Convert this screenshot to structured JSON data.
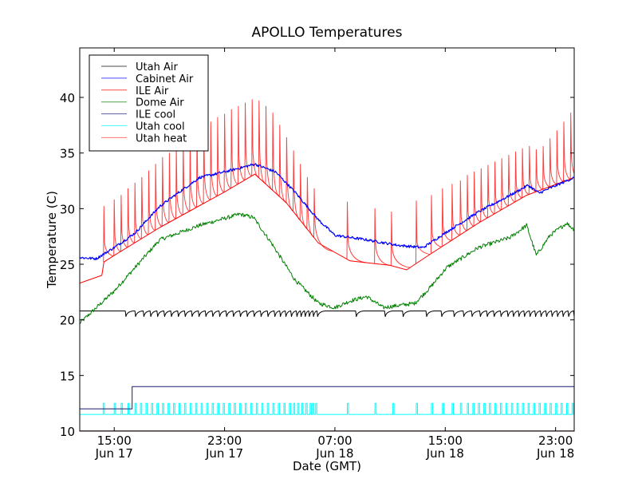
{
  "chart_data": {
    "type": "line",
    "title": "APOLLO Temperatures",
    "xlabel": "Date (GMT)",
    "ylabel": "Temperature (C)",
    "x_unit": "hours since 12:30 Jun 17 (GMT)",
    "xlim": [
      0,
      35.85
    ],
    "ylim": [
      10,
      44.45
    ],
    "grid": false,
    "legend_position": "top-left",
    "yticks": [
      10,
      15,
      20,
      25,
      30,
      35,
      40
    ],
    "ytick_labels": [
      "10",
      "15",
      "20",
      "25",
      "30",
      "35",
      "40"
    ],
    "xticks": [
      2.5,
      10.5,
      18.5,
      26.5,
      34.5
    ],
    "xtick_labels": [
      [
        "15:00",
        "Jun 17"
      ],
      [
        "23:00",
        "Jun 17"
      ],
      [
        "07:00",
        "Jun 18"
      ],
      [
        "15:00",
        "Jun 18"
      ],
      [
        "23:00",
        "Jun 18"
      ]
    ],
    "series": [
      {
        "name": "Utah Air",
        "color": "#000000",
        "style": "sawtooth",
        "base": [
          [
            0,
            20.8
          ],
          [
            35.85,
            20.8
          ]
        ],
        "dip": 0.5,
        "pulse_hours": [
          3.3,
          4.0,
          4.6,
          5.1,
          5.6,
          6.1,
          6.6,
          7.1,
          7.6,
          8.1,
          8.6,
          9.1,
          9.6,
          10.1,
          10.6,
          11.1,
          11.6,
          12.1,
          12.6,
          13.1,
          13.6,
          14.1,
          14.5,
          14.9,
          15.3,
          15.7,
          16.0,
          16.3,
          16.6,
          16.9,
          17.2,
          20.0,
          22.1,
          23.4,
          25.1,
          26.2,
          27.1,
          27.8,
          28.4,
          29.0,
          29.5,
          30.0,
          30.5,
          31.0,
          31.4,
          31.8,
          32.2,
          32.6,
          33.0,
          33.4,
          33.8,
          34.2,
          34.6,
          35.0,
          35.4,
          35.8
        ]
      },
      {
        "name": "Cabinet Air",
        "color": "#0000ff",
        "style": "noisy",
        "points": [
          [
            0,
            25.6
          ],
          [
            1.2,
            25.5
          ],
          [
            2.5,
            26.5
          ],
          [
            4.0,
            27.8
          ],
          [
            5.8,
            30.2
          ],
          [
            7.0,
            31.3
          ],
          [
            8.7,
            32.8
          ],
          [
            10.5,
            33.3
          ],
          [
            12.7,
            34.0
          ],
          [
            14.2,
            33.3
          ],
          [
            15.6,
            31.5
          ],
          [
            17.3,
            29.0
          ],
          [
            18.5,
            27.6
          ],
          [
            20.8,
            27.2
          ],
          [
            23.1,
            26.7
          ],
          [
            24.9,
            26.5
          ],
          [
            26.6,
            27.9
          ],
          [
            28.9,
            29.7
          ],
          [
            31.2,
            31.2
          ],
          [
            32.5,
            32.1
          ],
          [
            33.3,
            31.4
          ],
          [
            35.85,
            32.8
          ]
        ]
      },
      {
        "name": "ILE Air",
        "color": "#ff0000",
        "style": "line",
        "points": [
          [
            0,
            23.3
          ],
          [
            1.6,
            24.0
          ],
          [
            1.75,
            25.2
          ],
          [
            2.5,
            25.8
          ],
          [
            5.8,
            28.3
          ],
          [
            10.5,
            31.5
          ],
          [
            12.7,
            33.1
          ],
          [
            15.0,
            30.5
          ],
          [
            17.3,
            26.9
          ],
          [
            19.6,
            25.3
          ],
          [
            22.5,
            24.9
          ],
          [
            23.7,
            24.5
          ],
          [
            25.4,
            25.9
          ],
          [
            28.9,
            28.7
          ],
          [
            32.4,
            31.2
          ],
          [
            35.85,
            32.8
          ]
        ]
      },
      {
        "name": "Dome Air",
        "color": "#008000",
        "style": "noisy",
        "points": [
          [
            0,
            19.7
          ],
          [
            2.5,
            22.6
          ],
          [
            5.8,
            27.2
          ],
          [
            8.7,
            28.5
          ],
          [
            11.6,
            29.5
          ],
          [
            12.6,
            29.2
          ],
          [
            13.9,
            26.9
          ],
          [
            15.6,
            23.6
          ],
          [
            17.3,
            21.5
          ],
          [
            18.5,
            21.1
          ],
          [
            19.6,
            21.7
          ],
          [
            20.8,
            22.1
          ],
          [
            22.0,
            21.1
          ],
          [
            24.3,
            21.5
          ],
          [
            25.4,
            22.9
          ],
          [
            26.6,
            24.7
          ],
          [
            28.9,
            26.5
          ],
          [
            31.2,
            27.4
          ],
          [
            32.4,
            28.5
          ],
          [
            33.1,
            25.8
          ],
          [
            34.1,
            27.6
          ],
          [
            35.3,
            28.7
          ],
          [
            35.85,
            28.1
          ]
        ]
      },
      {
        "name": "ILE cool",
        "color": "#191970",
        "style": "step",
        "points": [
          [
            0,
            12.0
          ],
          [
            3.8,
            12.0
          ],
          [
            3.8,
            14.0
          ],
          [
            35.85,
            14.0
          ]
        ]
      },
      {
        "name": "Utah cool",
        "color": "#00ffff",
        "style": "pulses",
        "base": 11.5,
        "high": 12.5,
        "pulse_hours": [
          1.7,
          2.5,
          3.0,
          3.5,
          4.0,
          4.4,
          4.8,
          5.2,
          5.6,
          6.0,
          6.4,
          6.8,
          7.2,
          7.6,
          8.0,
          8.4,
          8.8,
          9.2,
          9.6,
          10.0,
          10.4,
          10.8,
          11.2,
          11.6,
          12.0,
          12.4,
          12.8,
          13.2,
          13.6,
          14.0,
          14.4,
          14.8,
          15.2,
          15.5,
          15.8,
          16.1,
          16.4,
          16.7,
          16.9,
          17.1,
          19.4,
          21.4,
          22.7,
          24.4,
          25.5,
          26.3,
          27.0,
          27.6,
          28.1,
          28.5,
          28.9,
          29.3,
          29.7,
          30.1,
          30.5,
          30.9,
          31.3,
          31.7,
          32.1,
          32.5,
          32.9,
          33.3,
          33.7,
          34.1,
          34.5,
          34.9,
          35.3,
          35.7
        ]
      },
      {
        "name": "Utah heat",
        "color": "#ff0000",
        "style": "spikes",
        "peaks": [
          [
            1.75,
            30.2
          ],
          [
            2.5,
            30.8
          ],
          [
            3.0,
            31.2
          ],
          [
            3.5,
            31.8
          ],
          [
            4.0,
            32.3
          ],
          [
            4.5,
            32.8
          ],
          [
            5.0,
            33.4
          ],
          [
            5.5,
            34.0
          ],
          [
            6.0,
            34.6
          ],
          [
            6.5,
            35.0
          ],
          [
            7.0,
            35.5
          ],
          [
            7.5,
            36.0
          ],
          [
            8.0,
            36.5
          ],
          [
            8.5,
            37.0
          ],
          [
            9.0,
            37.4
          ],
          [
            9.5,
            37.8
          ],
          [
            10.0,
            38.2
          ],
          [
            10.5,
            38.5
          ],
          [
            11.0,
            38.9
          ],
          [
            11.5,
            39.2
          ],
          [
            12.0,
            39.5
          ],
          [
            12.5,
            39.8
          ],
          [
            13.0,
            39.7
          ],
          [
            13.5,
            39.2
          ],
          [
            14.0,
            38.6
          ],
          [
            14.5,
            37.5
          ],
          [
            15.0,
            36.4
          ],
          [
            15.5,
            35.2
          ],
          [
            16.0,
            34.0
          ],
          [
            16.5,
            32.8
          ],
          [
            17.0,
            31.8
          ],
          [
            19.4,
            30.6
          ],
          [
            21.4,
            30.0
          ],
          [
            22.6,
            29.7
          ],
          [
            24.4,
            30.7
          ],
          [
            25.5,
            31.2
          ],
          [
            26.3,
            31.8
          ],
          [
            27.0,
            32.2
          ],
          [
            27.6,
            32.5
          ],
          [
            28.1,
            33.0
          ],
          [
            28.6,
            33.3
          ],
          [
            29.1,
            33.6
          ],
          [
            29.6,
            33.9
          ],
          [
            30.1,
            34.2
          ],
          [
            30.6,
            34.5
          ],
          [
            31.1,
            34.8
          ],
          [
            31.6,
            35.1
          ],
          [
            32.1,
            35.4
          ],
          [
            32.6,
            35.6
          ],
          [
            33.1,
            35.3
          ],
          [
            33.6,
            35.6
          ],
          [
            34.1,
            36.3
          ],
          [
            34.6,
            37.0
          ],
          [
            35.1,
            37.8
          ],
          [
            35.6,
            38.6
          ]
        ]
      }
    ],
    "legend": [
      "Utah Air",
      "Cabinet Air",
      "ILE Air",
      "Dome Air",
      "ILE cool",
      "Utah cool",
      "Utah heat"
    ]
  }
}
